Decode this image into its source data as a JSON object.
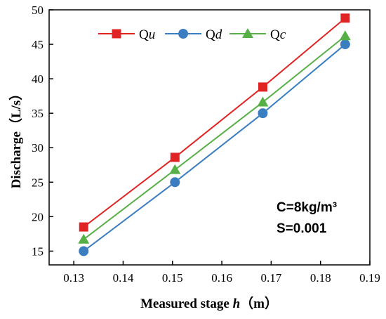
{
  "chart_data": {
    "type": "line",
    "xlabel_prefix": "Measured stage ",
    "xlabel_var": "h",
    "xlabel_suffix": "（m）",
    "ylabel": "Discharge（L/s）",
    "xlim": [
      0.125,
      0.19
    ],
    "ylim": [
      13,
      50
    ],
    "x_ticks": [
      0.13,
      0.14,
      0.15,
      0.16,
      0.17,
      0.18,
      0.19
    ],
    "x_tick_labels": [
      "0.13",
      "0.14",
      "0.15",
      "0.16",
      "0.17",
      "0.18",
      "0.19"
    ],
    "y_ticks": [
      15,
      20,
      25,
      30,
      35,
      40,
      45,
      50
    ],
    "y_tick_labels": [
      "15",
      "20",
      "25",
      "30",
      "35",
      "40",
      "45",
      "50"
    ],
    "x": [
      0.132,
      0.1505,
      0.1683,
      0.185
    ],
    "series": [
      {
        "name_main": "Q",
        "name_sub": "u",
        "values": [
          18.5,
          28.6,
          38.8,
          48.8
        ],
        "color": "#e02424",
        "marker": "square"
      },
      {
        "name_main": "Q",
        "name_sub": "d",
        "values": [
          15.0,
          25.0,
          35.0,
          45.0
        ],
        "color": "#3a7ec1",
        "marker": "circle"
      },
      {
        "name_main": "Q",
        "name_sub": "c",
        "values": [
          16.7,
          26.8,
          36.6,
          46.2
        ],
        "color": "#56b046",
        "marker": "triangle"
      }
    ],
    "legend_position": "top",
    "grid": false,
    "annotations": [
      "C=8kg/m³",
      "S=0.001"
    ]
  }
}
